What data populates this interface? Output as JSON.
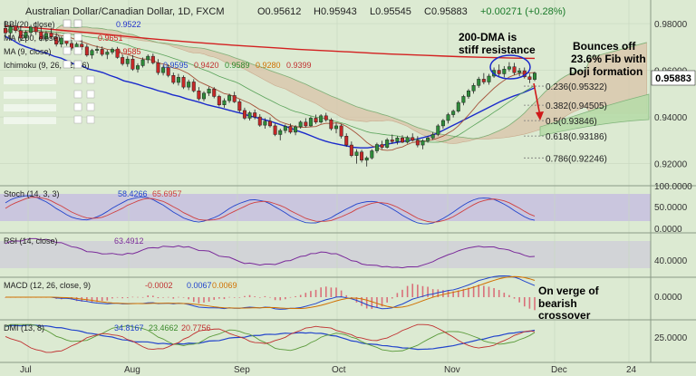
{
  "header": {
    "title": "Australian Dollar/Canadian Dollar, 1D, FXCM",
    "open": "O0.95612",
    "high": "H0.95943",
    "low": "L0.95545",
    "close": "C0.95883",
    "change": "+0.00271 (+0.28%)"
  },
  "main_legend": [
    {
      "label": "BB (20, close)",
      "value": "0.9522",
      "color": "#2233cc"
    },
    {
      "label": "MA (200, close)",
      "value": "0.9651",
      "color": "#cc2222"
    },
    {
      "label": "MA (9, close)",
      "value": "0.9585",
      "color": "#cc2222"
    },
    {
      "label": "Ichimoku (9, 26, 52, 26)",
      "values": [
        "0.9595",
        "0.9420",
        "0.9589",
        "0.9280",
        "0.9399"
      ]
    }
  ],
  "annotations": {
    "dma": [
      "200-DMA is",
      "stiff resistance"
    ],
    "bounce": [
      "Bounces off",
      "23.6% Fib with",
      "Doji formation"
    ],
    "macd": [
      "On verge of",
      "bearish",
      "crossover"
    ]
  },
  "fib_levels": [
    {
      "label": "0.236(0.95322)",
      "value": 0.95322
    },
    {
      "label": "0.382(0.94505)",
      "value": 0.94505
    },
    {
      "label": "0.5(0.93846)",
      "value": 0.93846
    },
    {
      "label": "0.618(0.93186)",
      "value": 0.93186
    },
    {
      "label": "0.786(0.92246)",
      "value": 0.92246
    }
  ],
  "price_axis": {
    "ticks": [
      "0.98000",
      "0.96000",
      "0.94000",
      "0.92000"
    ],
    "tick_values": [
      0.98,
      0.96,
      0.94,
      0.92
    ],
    "current": "0.95883"
  },
  "stoch": {
    "label": "Stoch (14, 3, 3)",
    "values": [
      "58.4266",
      "65.6957"
    ],
    "ticks": [
      "100.0000",
      "50.0000",
      "0.0000"
    ]
  },
  "rsi": {
    "label": "RSI (14, close)",
    "value": "63.4912",
    "ticks": [
      "40.0000"
    ]
  },
  "macd": {
    "label": "MACD (12, 26, close, 9)",
    "values": [
      "-0.0002",
      "0.0067",
      "0.0069"
    ],
    "ticks": [
      "0.0000"
    ]
  },
  "dmi": {
    "label": "DMI (13, 8)",
    "values": [
      "34.8167",
      "23.4662",
      "20.7756"
    ],
    "ticks": [
      "25.0000"
    ]
  },
  "x_axis": {
    "months": [
      "Jul",
      "Aug",
      "Sep",
      "Oct",
      "Nov",
      "Dec",
      "24"
    ]
  },
  "chart_data": {
    "type": "line",
    "series": [
      {
        "name": "close",
        "values": [
          0.9745,
          0.973,
          0.9712,
          0.97,
          0.969,
          0.968,
          0.9672,
          0.966,
          0.9652,
          0.9638,
          0.9625,
          0.9618,
          0.9605,
          0.9598,
          0.959,
          0.9578,
          0.9568,
          0.9555,
          0.9548,
          0.954,
          0.953,
          0.9522,
          0.9512,
          0.9505,
          0.9495,
          0.9488,
          0.9478,
          0.947,
          0.9462,
          0.9452,
          0.9445,
          0.9438,
          0.943,
          0.9422,
          0.9415,
          0.9405,
          0.9398,
          0.939,
          0.9382,
          0.9372,
          0.9362,
          0.9352,
          0.934,
          0.933,
          0.9318,
          0.9306,
          0.9296,
          0.9288,
          0.9282,
          0.9276,
          0.927,
          0.9268,
          0.9268,
          0.9272,
          0.9278,
          0.9285,
          0.929,
          0.9295,
          0.93,
          0.9305,
          0.9312,
          0.932,
          0.933,
          0.9345,
          0.936,
          0.9375,
          0.939,
          0.9405,
          0.942,
          0.9435,
          0.945,
          0.9465,
          0.9478,
          0.949,
          0.95,
          0.9512,
          0.9525
        ]
      },
      {
        "name": "ma200",
        "values": [
          0.979,
          0.9785,
          0.9779,
          0.9772,
          0.9765,
          0.9758,
          0.975,
          0.9742,
          0.9735,
          0.9728,
          0.9722,
          0.9716,
          0.971,
          0.9705,
          0.97,
          0.9695,
          0.969,
          0.9686,
          0.9682,
          0.9678,
          0.9674,
          0.967,
          0.9667,
          0.9664,
          0.9661,
          0.9658,
          0.9656,
          0.9654,
          0.9652,
          0.9651
        ]
      }
    ],
    "candles": [
      [
        0.978,
        0.9812,
        0.9745,
        0.976
      ],
      [
        0.976,
        0.9798,
        0.9732,
        0.979
      ],
      [
        0.979,
        0.9815,
        0.976,
        0.977
      ],
      [
        0.977,
        0.979,
        0.9725,
        0.9738
      ],
      [
        0.9738,
        0.9772,
        0.9718,
        0.9762
      ],
      [
        0.9762,
        0.9795,
        0.9745,
        0.9785
      ],
      [
        0.9785,
        0.9808,
        0.9752,
        0.9765
      ],
      [
        0.9765,
        0.979,
        0.9725,
        0.9735
      ],
      [
        0.9735,
        0.9768,
        0.9722,
        0.9758
      ],
      [
        0.9758,
        0.9782,
        0.9738,
        0.9742
      ],
      [
        0.9742,
        0.976,
        0.9702,
        0.9712
      ],
      [
        0.9712,
        0.9745,
        0.9698,
        0.9738
      ],
      [
        0.9738,
        0.9758,
        0.9705,
        0.9715
      ],
      [
        0.9715,
        0.973,
        0.9685,
        0.9695
      ],
      [
        0.9695,
        0.972,
        0.9678,
        0.9712
      ],
      [
        0.9712,
        0.973,
        0.9688,
        0.97
      ],
      [
        0.97,
        0.9712,
        0.9658,
        0.9665
      ],
      [
        0.9665,
        0.9692,
        0.965,
        0.9685
      ],
      [
        0.9685,
        0.9705,
        0.9672,
        0.969
      ],
      [
        0.969,
        0.9702,
        0.966,
        0.9668
      ],
      [
        0.9668,
        0.9688,
        0.9648,
        0.9678
      ],
      [
        0.9678,
        0.9698,
        0.9668,
        0.969
      ],
      [
        0.969,
        0.97,
        0.965,
        0.9655
      ],
      [
        0.9655,
        0.9668,
        0.962,
        0.9628
      ],
      [
        0.9628,
        0.966,
        0.9615,
        0.9648
      ],
      [
        0.9648,
        0.9665,
        0.9598,
        0.9605
      ],
      [
        0.9605,
        0.963,
        0.959,
        0.962
      ],
      [
        0.962,
        0.9655,
        0.9612,
        0.9645
      ],
      [
        0.9645,
        0.9668,
        0.963,
        0.966
      ],
      [
        0.966,
        0.9672,
        0.9625,
        0.9632
      ],
      [
        0.9632,
        0.9648,
        0.958,
        0.959
      ],
      [
        0.959,
        0.962,
        0.9578,
        0.9612
      ],
      [
        0.9612,
        0.9625,
        0.957,
        0.9578
      ],
      [
        0.9578,
        0.959,
        0.954,
        0.9548
      ],
      [
        0.9548,
        0.9585,
        0.9535,
        0.957
      ],
      [
        0.957,
        0.9578,
        0.952,
        0.9528
      ],
      [
        0.9528,
        0.956,
        0.9515,
        0.955
      ],
      [
        0.955,
        0.9562,
        0.9505,
        0.9512
      ],
      [
        0.9512,
        0.9528,
        0.947,
        0.9478
      ],
      [
        0.9478,
        0.951,
        0.9468,
        0.9502
      ],
      [
        0.9502,
        0.953,
        0.949,
        0.952
      ],
      [
        0.952,
        0.9528,
        0.948,
        0.9488
      ],
      [
        0.9488,
        0.9495,
        0.9445,
        0.9452
      ],
      [
        0.9452,
        0.948,
        0.944,
        0.947
      ],
      [
        0.947,
        0.95,
        0.946,
        0.9492
      ],
      [
        0.9492,
        0.9508,
        0.946,
        0.9465
      ],
      [
        0.9465,
        0.9475,
        0.942,
        0.9428
      ],
      [
        0.9428,
        0.944,
        0.9388,
        0.9395
      ],
      [
        0.9395,
        0.9425,
        0.9385,
        0.9418
      ],
      [
        0.9418,
        0.9432,
        0.939,
        0.94
      ],
      [
        0.94,
        0.9412,
        0.9358,
        0.9365
      ],
      [
        0.9365,
        0.9395,
        0.935,
        0.9382
      ],
      [
        0.9382,
        0.9398,
        0.9355,
        0.9362
      ],
      [
        0.9362,
        0.9372,
        0.9318,
        0.9325
      ],
      [
        0.9325,
        0.935,
        0.93,
        0.9342
      ],
      [
        0.9342,
        0.9368,
        0.933,
        0.936
      ],
      [
        0.936,
        0.9372,
        0.9328,
        0.9335
      ],
      [
        0.9335,
        0.9365,
        0.9322,
        0.9358
      ],
      [
        0.9358,
        0.9385,
        0.935,
        0.9378
      ],
      [
        0.9378,
        0.9395,
        0.9355,
        0.9362
      ],
      [
        0.9362,
        0.9402,
        0.9358,
        0.9395
      ],
      [
        0.9395,
        0.941,
        0.937,
        0.9378
      ],
      [
        0.9378,
        0.9412,
        0.9372,
        0.9405
      ],
      [
        0.9405,
        0.9418,
        0.938,
        0.9388
      ],
      [
        0.9388,
        0.9395,
        0.9342,
        0.935
      ],
      [
        0.935,
        0.9375,
        0.933,
        0.9362
      ],
      [
        0.9362,
        0.937,
        0.9308,
        0.9318
      ],
      [
        0.9318,
        0.933,
        0.9272,
        0.928
      ],
      [
        0.928,
        0.9295,
        0.9228,
        0.9235
      ],
      [
        0.9235,
        0.9262,
        0.92,
        0.925
      ],
      [
        0.925,
        0.926,
        0.9205,
        0.9215
      ],
      [
        0.9215,
        0.9232,
        0.9188,
        0.9225
      ],
      [
        0.9225,
        0.9262,
        0.9218,
        0.9255
      ],
      [
        0.9255,
        0.929,
        0.9245,
        0.9282
      ],
      [
        0.9282,
        0.9298,
        0.9262,
        0.927
      ],
      [
        0.927,
        0.931,
        0.9265,
        0.9302
      ],
      [
        0.9302,
        0.9325,
        0.9285,
        0.9295
      ],
      [
        0.9295,
        0.9318,
        0.9282,
        0.931
      ],
      [
        0.931,
        0.9322,
        0.9288,
        0.9292
      ],
      [
        0.9292,
        0.932,
        0.9286,
        0.9312
      ],
      [
        0.9312,
        0.933,
        0.9295,
        0.93
      ],
      [
        0.93,
        0.9318,
        0.927,
        0.928
      ],
      [
        0.928,
        0.9305,
        0.9262,
        0.9298
      ],
      [
        0.9298,
        0.9318,
        0.929,
        0.931
      ],
      [
        0.931,
        0.9335,
        0.9302,
        0.9325
      ],
      [
        0.9325,
        0.937,
        0.9318,
        0.9362
      ],
      [
        0.9362,
        0.9392,
        0.935,
        0.9385
      ],
      [
        0.9385,
        0.9418,
        0.9372,
        0.941
      ],
      [
        0.941,
        0.9432,
        0.9398,
        0.9425
      ],
      [
        0.9425,
        0.947,
        0.9418,
        0.9462
      ],
      [
        0.9462,
        0.9495,
        0.945,
        0.9488
      ],
      [
        0.9488,
        0.952,
        0.9478,
        0.9512
      ],
      [
        0.9512,
        0.9545,
        0.95,
        0.9535
      ],
      [
        0.9535,
        0.9572,
        0.9525,
        0.9562
      ],
      [
        0.9562,
        0.9588,
        0.954,
        0.955
      ],
      [
        0.955,
        0.9585,
        0.9538,
        0.9575
      ],
      [
        0.9575,
        0.9612,
        0.9568,
        0.96
      ],
      [
        0.96,
        0.9625,
        0.9575,
        0.9585
      ],
      [
        0.9585,
        0.9618,
        0.957,
        0.9605
      ],
      [
        0.9605,
        0.9635,
        0.9595,
        0.9615
      ],
      [
        0.9615,
        0.9632,
        0.958,
        0.959
      ],
      [
        0.959,
        0.961,
        0.9575,
        0.9598
      ],
      [
        0.9598,
        0.9612,
        0.9565,
        0.9572
      ],
      [
        0.9572,
        0.9585,
        0.9545,
        0.9561
      ],
      [
        0.9561,
        0.9594,
        0.9554,
        0.9588
      ]
    ]
  }
}
